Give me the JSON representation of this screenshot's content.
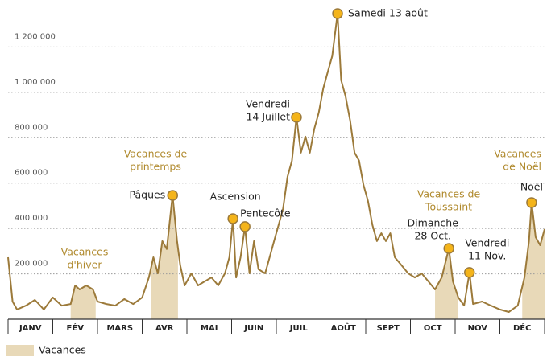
{
  "chart_data": {
    "type": "line",
    "legend": "Vacances",
    "color": "#9c7a3a",
    "fill_color": "#e8d9b8",
    "marker_color": "#f4b41a",
    "period_label_color": "#b08a2e",
    "grid": true,
    "xlim": [
      0,
      12
    ],
    "xticks": [
      0,
      1,
      2,
      3,
      4,
      5,
      6,
      7,
      8,
      9,
      10,
      11,
      12
    ],
    "categories": [
      "JANV",
      "FÉV",
      "MARS",
      "AVR",
      "MAI",
      "JUIN",
      "JUIL",
      "AOÛT",
      "SEPT",
      "OCT",
      "NOV",
      "DÉC"
    ],
    "ylim": [
      0,
      1400000
    ],
    "yticks": [
      {
        "value": 200000,
        "label": "200 000"
      },
      {
        "value": 400000,
        "label": "400 000"
      },
      {
        "value": 600000,
        "label": "600 000"
      },
      {
        "value": 800000,
        "label": "800 000"
      },
      {
        "value": 1000000,
        "label": "1 000 000"
      },
      {
        "value": 1200000,
        "label": "1 200 000"
      }
    ],
    "x": [
      0,
      0.1,
      0.2,
      0.4,
      0.6,
      0.8,
      1.0,
      1.2,
      1.4,
      1.5,
      1.6,
      1.75,
      1.9,
      2.0,
      2.2,
      2.4,
      2.6,
      2.8,
      3.0,
      3.15,
      3.25,
      3.35,
      3.45,
      3.55,
      3.68,
      3.78,
      3.85,
      3.95,
      4.1,
      4.25,
      4.4,
      4.55,
      4.7,
      4.85,
      4.95,
      5.03,
      5.1,
      5.2,
      5.3,
      5.4,
      5.5,
      5.6,
      5.75,
      5.85,
      5.95,
      6.05,
      6.15,
      6.25,
      6.35,
      6.45,
      6.55,
      6.65,
      6.75,
      6.85,
      6.95,
      7.05,
      7.15,
      7.25,
      7.37,
      7.45,
      7.55,
      7.65,
      7.75,
      7.85,
      7.95,
      8.05,
      8.15,
      8.25,
      8.35,
      8.45,
      8.55,
      8.65,
      8.8,
      8.95,
      9.1,
      9.25,
      9.4,
      9.55,
      9.7,
      9.86,
      9.95,
      10.07,
      10.2,
      10.32,
      10.4,
      10.6,
      10.8,
      11.0,
      11.2,
      11.4,
      11.55,
      11.65,
      11.71,
      11.8,
      11.9,
      12.0
    ],
    "values": [
      273000,
      78000,
      43000,
      60000,
      85000,
      43000,
      96000,
      60000,
      67000,
      149000,
      131000,
      149000,
      131000,
      78000,
      67000,
      60000,
      89000,
      67000,
      96000,
      184000,
      273000,
      202000,
      344000,
      309000,
      546000,
      344000,
      238000,
      149000,
      202000,
      149000,
      167000,
      184000,
      149000,
      202000,
      273000,
      443000,
      184000,
      273000,
      408000,
      202000,
      344000,
      220000,
      202000,
      273000,
      344000,
      415000,
      486000,
      628000,
      699000,
      890000,
      734000,
      805000,
      734000,
      840000,
      911000,
      1018000,
      1089000,
      1160000,
      1347000,
      1053000,
      982000,
      876000,
      734000,
      699000,
      592000,
      521000,
      415000,
      344000,
      379000,
      344000,
      379000,
      273000,
      238000,
      202000,
      184000,
      202000,
      167000,
      131000,
      184000,
      312000,
      167000,
      96000,
      60000,
      206000,
      67000,
      78000,
      60000,
      43000,
      32000,
      60000,
      184000,
      344000,
      514000,
      362000,
      326000,
      397000
    ],
    "periods": [
      {
        "label": [
          "Vacances",
          "d'hiver"
        ],
        "start": 1.4,
        "end": 1.96
      },
      {
        "label": [
          "Vacances de",
          "printemps"
        ],
        "start": 3.19,
        "end": 3.8
      },
      {
        "label": [
          "Vacances de",
          "Toussaint"
        ],
        "start": 9.55,
        "end": 10.07
      },
      {
        "label": [
          "Vacances",
          "de Noël"
        ],
        "start": 11.5,
        "end": 12
      }
    ],
    "annotations": [
      {
        "label": [
          "Pâques"
        ],
        "x": 3.68,
        "value": 546000
      },
      {
        "label": [
          "Ascension"
        ],
        "x": 5.03,
        "value": 443000
      },
      {
        "label": [
          "Pentecôte"
        ],
        "x": 5.3,
        "value": 408000
      },
      {
        "label": [
          "Vendredi",
          "14 Juillet"
        ],
        "x": 6.45,
        "value": 890000
      },
      {
        "label": [
          "Samedi 13 août"
        ],
        "x": 7.37,
        "value": 1347000
      },
      {
        "label": [
          "Dimanche",
          "28 Oct."
        ],
        "x": 9.86,
        "value": 312000
      },
      {
        "label": [
          "Vendredi",
          "11 Nov."
        ],
        "x": 10.32,
        "value": 206000
      },
      {
        "label": [
          "Noël"
        ],
        "x": 11.71,
        "value": 514000
      }
    ]
  }
}
